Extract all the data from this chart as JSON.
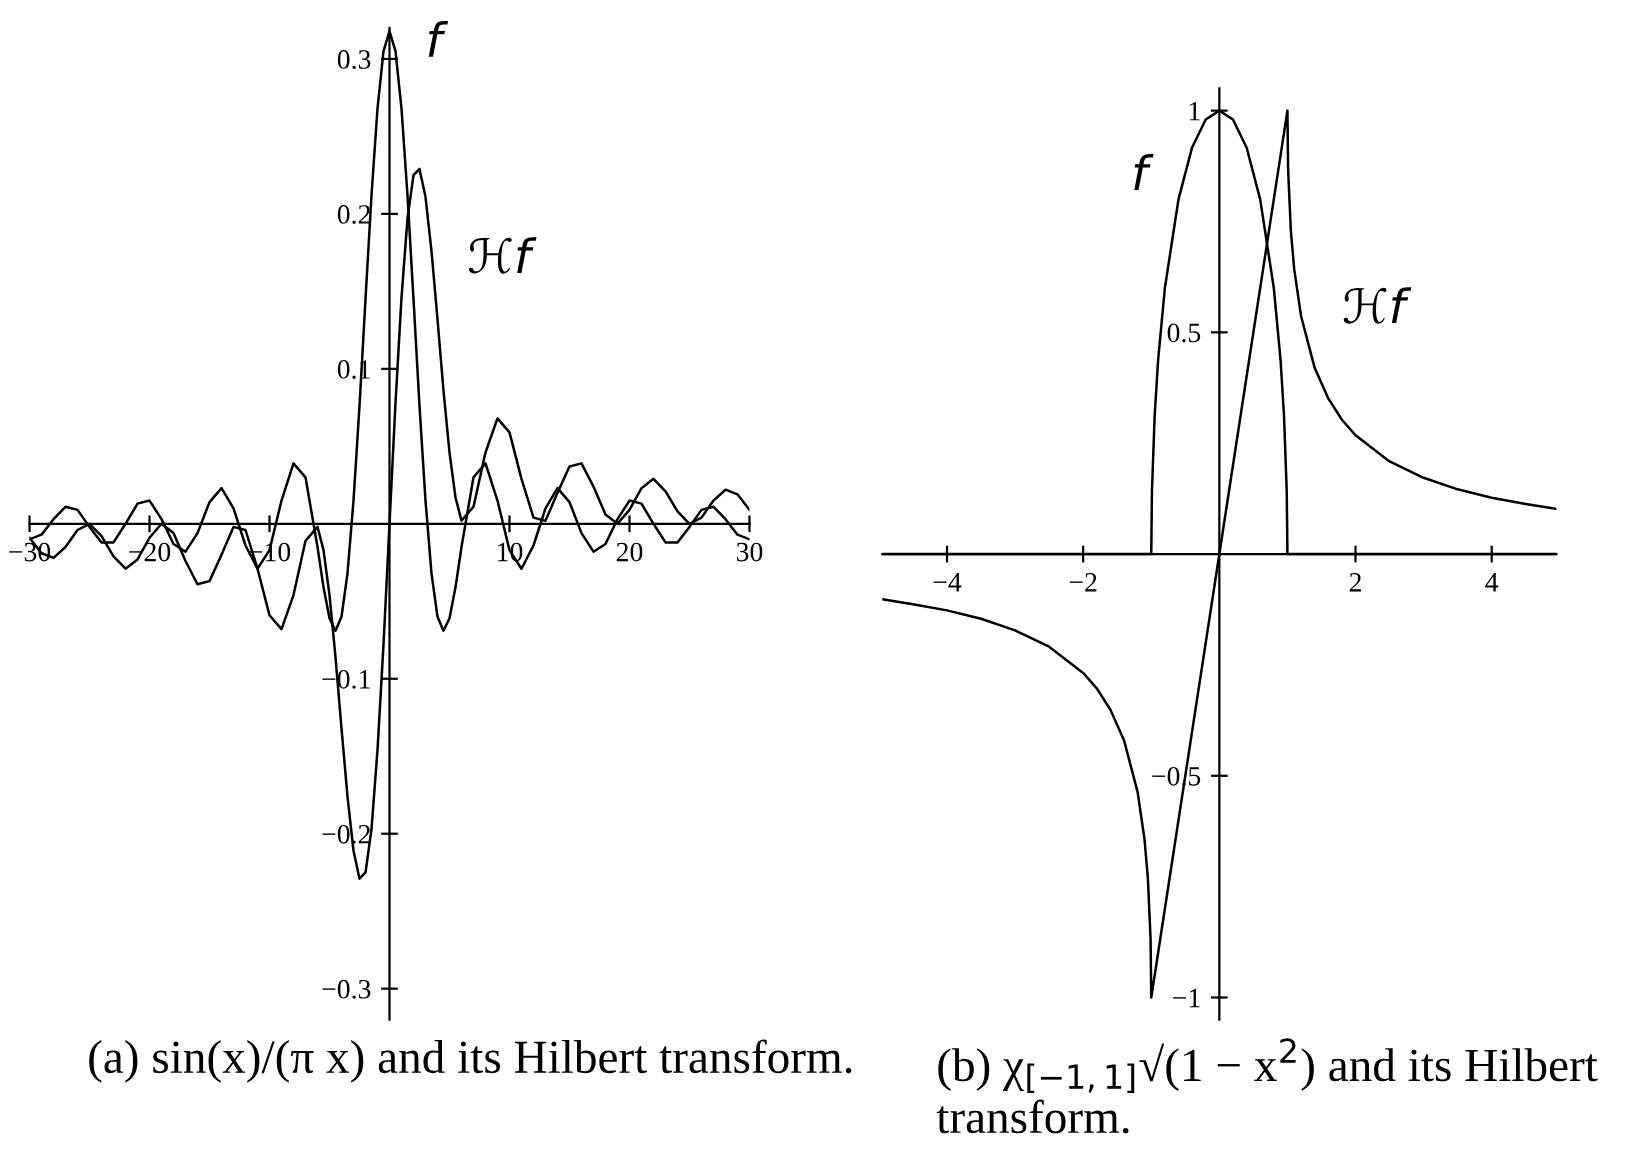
{
  "chart_data": [
    {
      "type": "line",
      "xlim": [
        -30,
        30
      ],
      "ylim": [
        -0.32,
        0.32
      ],
      "xticks": [
        {
          "value": -30,
          "label": "−30"
        },
        {
          "value": -20,
          "label": "−20"
        },
        {
          "value": -10,
          "label": "−10"
        },
        10,
        20,
        30
      ],
      "yticks": [
        {
          "value": -0.3,
          "label": "−0.3"
        },
        {
          "value": -0.2,
          "label": "−0.2"
        },
        {
          "value": -0.1,
          "label": "−0.1"
        },
        0.1,
        0.2,
        0.3
      ],
      "series": [
        {
          "color": "#000000",
          "x": [
            -30,
            -29,
            -28,
            -27,
            -26,
            -25,
            -24,
            -23,
            -22,
            -21,
            -20,
            -19,
            -18,
            -17,
            -16,
            -15,
            -14,
            -13,
            -12,
            -11,
            -10,
            -9,
            -8,
            -7,
            -6,
            -5.5,
            -5,
            -4.5,
            -4,
            -3.5,
            -3,
            -2.5,
            -2,
            -1.5,
            -1,
            -0.5,
            0,
            0.5,
            1,
            1.5,
            2,
            2.5,
            3,
            3.5,
            4,
            4.5,
            5,
            5.5,
            6,
            7,
            8,
            9,
            10,
            11,
            12,
            13,
            14,
            15,
            16,
            17,
            18,
            19,
            20,
            21,
            22,
            23,
            24,
            25,
            26,
            27,
            28,
            29,
            30
          ],
          "values": [
            -0.01,
            -0.007,
            0.003,
            0.011,
            0.009,
            -0.002,
            -0.012,
            -0.012,
            0.0,
            0.013,
            0.015,
            0.003,
            -0.013,
            -0.018,
            -0.006,
            0.014,
            0.023,
            0.01,
            -0.014,
            -0.029,
            -0.017,
            0.015,
            0.039,
            0.03,
            -0.015,
            -0.041,
            -0.061,
            -0.069,
            -0.06,
            -0.032,
            0.015,
            0.076,
            0.145,
            0.212,
            0.268,
            0.305,
            0.318,
            0.305,
            0.268,
            0.212,
            0.145,
            0.076,
            0.015,
            -0.032,
            -0.06,
            -0.069,
            -0.061,
            -0.041,
            -0.015,
            0.03,
            0.039,
            0.015,
            -0.017,
            -0.029,
            -0.014,
            0.01,
            0.023,
            0.014,
            -0.006,
            -0.018,
            -0.013,
            0.003,
            0.015,
            0.013,
            0.0,
            -0.012,
            -0.012,
            -0.002,
            0.009,
            0.011,
            0.003,
            -0.007,
            -0.01
          ]
        },
        {
          "color": "#000000",
          "x": [
            -30,
            -29,
            -28,
            -27,
            -26,
            -25,
            -24,
            -23,
            -22,
            -21,
            -20,
            -19,
            -18,
            -17,
            -16,
            -15,
            -14,
            -13,
            -12,
            -11,
            -10,
            -9,
            -8,
            -7,
            -6,
            -5.5,
            -5,
            -4.5,
            -4,
            -3.5,
            -3,
            -2.5,
            -2,
            -1.5,
            -1,
            -0.5,
            0,
            0.5,
            1,
            1.5,
            2,
            2.5,
            3,
            3.5,
            4,
            4.5,
            5,
            5.5,
            6,
            7,
            8,
            9,
            10,
            11,
            12,
            13,
            14,
            15,
            16,
            17,
            18,
            19,
            20,
            21,
            22,
            23,
            24,
            25,
            26,
            27,
            28,
            29,
            30
          ],
          "values": [
            -0.009,
            -0.019,
            -0.022,
            -0.015,
            -0.004,
            0.0,
            -0.008,
            -0.021,
            -0.029,
            -0.023,
            -0.009,
            0.0,
            -0.006,
            -0.024,
            -0.039,
            -0.037,
            -0.02,
            -0.002,
            -0.004,
            -0.029,
            -0.059,
            -0.068,
            -0.046,
            -0.011,
            -0.002,
            -0.017,
            -0.046,
            -0.086,
            -0.132,
            -0.176,
            -0.211,
            -0.229,
            -0.225,
            -0.197,
            -0.146,
            -0.078,
            0.0,
            0.078,
            0.146,
            0.197,
            0.225,
            0.229,
            0.211,
            0.176,
            0.132,
            0.086,
            0.046,
            0.017,
            0.002,
            0.011,
            0.046,
            0.068,
            0.059,
            0.029,
            0.004,
            0.002,
            0.02,
            0.037,
            0.039,
            0.024,
            0.006,
            0.0,
            0.009,
            0.023,
            0.029,
            0.021,
            0.008,
            0.0,
            0.004,
            0.015,
            0.022,
            0.019,
            0.009
          ]
        }
      ],
      "annotations": [
        "f",
        "ℋf",
        "(a) sin(x)/(π x) and its Hilbert transform."
      ]
    },
    {
      "type": "line",
      "xlim": [
        -4.95,
        4.95
      ],
      "ylim": [
        -1.05,
        1.05
      ],
      "xticks": [
        {
          "value": -4,
          "label": "−4"
        },
        {
          "value": -2,
          "label": "−2"
        },
        2,
        4
      ],
      "yticks": [
        {
          "value": -1,
          "label": "−1"
        },
        {
          "value": -0.5,
          "label": "−0.5"
        },
        0.5,
        1
      ],
      "series": [
        {
          "color": "#000000",
          "x": [
            -4.95,
            -1,
            -0.99,
            -0.95,
            -0.9,
            -0.8,
            -0.6,
            -0.4,
            -0.2,
            0,
            0.2,
            0.4,
            0.6,
            0.8,
            0.9,
            0.95,
            0.99,
            1,
            4.95
          ],
          "values": [
            0,
            0,
            0.141,
            0.312,
            0.436,
            0.6,
            0.8,
            0.917,
            0.98,
            1,
            0.98,
            0.917,
            0.8,
            0.6,
            0.436,
            0.312,
            0.141,
            0,
            0
          ]
        },
        {
          "color": "#000000",
          "x": [
            -4.95,
            -4.5,
            -4,
            -3.5,
            -3,
            -2.5,
            -2,
            -1.8,
            -1.6,
            -1.4,
            -1.2,
            -1.1,
            -1.05,
            -1.01,
            -1,
            1,
            1.01,
            1.05,
            1.1,
            1.2,
            1.4,
            1.6,
            1.8,
            2,
            2.5,
            3,
            3.5,
            4,
            4.5,
            4.95
          ],
          "values": [
            -0.102,
            -0.113,
            -0.127,
            -0.146,
            -0.172,
            -0.209,
            -0.268,
            -0.303,
            -0.351,
            -0.42,
            -0.537,
            -0.642,
            -0.73,
            -0.868,
            -1,
            1,
            0.868,
            0.73,
            0.642,
            0.537,
            0.42,
            0.351,
            0.303,
            0.268,
            0.209,
            0.172,
            0.146,
            0.127,
            0.113,
            0.102
          ]
        }
      ],
      "annotations": [
        "f",
        "ℋf",
        "(b) χ$_{[−1,1]}$√(1 − x$^{2}$) and its Hilbert transform."
      ]
    }
  ]
}
